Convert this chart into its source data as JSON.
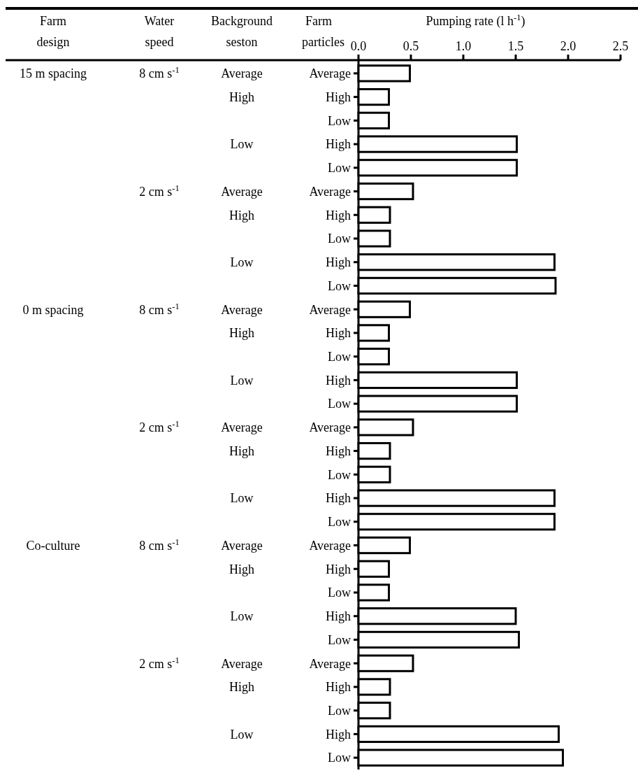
{
  "chart_data": {
    "type": "bar",
    "orientation": "horizontal",
    "xlabel": "Pumping rate (l h$^{-1}$)",
    "ylabel": "Farm particles",
    "categories": [
      "Average",
      "High",
      "Low",
      "High",
      "Low",
      "Average",
      "High",
      "Low",
      "High",
      "Low",
      "Average",
      "High",
      "Low",
      "High",
      "Low",
      "Average",
      "High",
      "Low",
      "High",
      "Low",
      "Average",
      "High",
      "Low",
      "High",
      "Low",
      "Average",
      "High",
      "Low",
      "High",
      "Low"
    ],
    "values": [
      0.49,
      0.29,
      0.29,
      1.51,
      1.51,
      0.52,
      0.3,
      0.3,
      1.87,
      1.88,
      0.49,
      0.29,
      0.29,
      1.51,
      1.51,
      0.52,
      0.3,
      0.3,
      1.87,
      1.87,
      0.49,
      0.29,
      0.29,
      1.5,
      1.53,
      0.52,
      0.3,
      0.3,
      1.91,
      1.95
    ],
    "color": "#ffffff",
    "xlim": [
      0,
      2.5
    ],
    "xticks": [
      {
        "value": 0,
        "label": "0.0"
      },
      0.5,
      {
        "value": 1,
        "label": "1.0"
      },
      1.5,
      {
        "value": 2,
        "label": "2.0"
      },
      2.5
    ],
    "annotations": [
      "Farm design",
      "Water speed",
      "Background seston",
      "15 m spacing",
      "8 cm s$^{-1}$",
      "Average",
      "High",
      "Low",
      "2 cm s$^{-1}$",
      "Average",
      "High",
      "Low",
      "0 m spacing",
      "8 cm s$^{-1}$",
      "Average",
      "High",
      "Low",
      "2 cm s$^{-1}$",
      "Average",
      "High",
      "Low",
      "Co-culture",
      "8 cm s$^{-1}$",
      "Average",
      "High",
      "Low",
      "2 cm s$^{-1}$",
      "Average",
      "High",
      "Low"
    ]
  }
}
